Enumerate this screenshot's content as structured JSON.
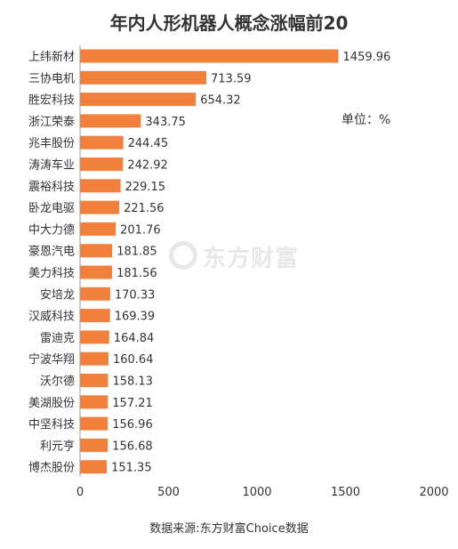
{
  "chart_data": {
    "type": "bar",
    "orientation": "horizontal",
    "title": "年内人形机器人概念涨幅前20",
    "unit_note": "单位：%",
    "source": "数据来源:东方财富Choice数据",
    "watermark": "东方财富",
    "categories": [
      "上纬新材",
      "三协电机",
      "胜宏科技",
      "浙江荣泰",
      "兆丰股份",
      "涛涛车业",
      "震裕科技",
      "卧龙电驱",
      "中大力德",
      "豪恩汽电",
      "美力科技",
      "安培龙",
      "汉威科技",
      "雷迪克",
      "宁波华翔",
      "沃尔德",
      "美湖股份",
      "中坚科技",
      "利元亨",
      "博杰股份"
    ],
    "values": [
      1459.96,
      713.59,
      654.32,
      343.75,
      244.45,
      242.92,
      229.15,
      221.56,
      201.76,
      181.85,
      181.56,
      170.33,
      169.39,
      164.84,
      160.64,
      158.13,
      157.21,
      156.96,
      156.68,
      151.35
    ],
    "value_labels": [
      "1459.96",
      "713.59",
      "654.32",
      "343.75",
      "244.45",
      "242.92",
      "229.15",
      "221.56",
      "201.76",
      "181.85",
      "181.56",
      "170.33",
      "169.39",
      "164.84",
      "160.64",
      "158.13",
      "157.21",
      "156.96",
      "156.68",
      "151.35"
    ],
    "xlim": [
      0,
      2000
    ],
    "xticks": [
      0,
      500,
      1000,
      1500,
      2000
    ],
    "xtick_labels": [
      "0",
      "500",
      "1000",
      "1500",
      "2000"
    ],
    "bar_color": "#f0803c",
    "grid": false
  }
}
